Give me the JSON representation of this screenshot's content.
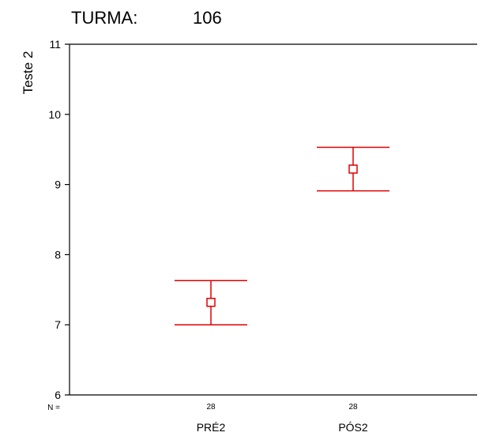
{
  "title": {
    "label": "TURMA:",
    "value": "106"
  },
  "chart_data": {
    "type": "errorbar",
    "categories": [
      "PRÉ2",
      "PÓS2"
    ],
    "series": [
      {
        "mean": [
          7.32,
          9.22
        ],
        "lower": [
          7.0,
          8.91
        ],
        "upper": [
          7.63,
          9.53
        ]
      }
    ],
    "n_label": "N =",
    "n_values": [
      "28",
      "28"
    ],
    "ylabel": "Teste 2",
    "xlabel": "",
    "ylim": [
      6,
      11
    ],
    "yticks": [
      6,
      7,
      8,
      9,
      10,
      11
    ],
    "ytick_labels": [
      "6",
      "7",
      "8",
      "9",
      "10",
      "11"
    ],
    "grid": false,
    "legend": "none",
    "marker": "open-square",
    "colors": {
      "error_bar": "#e00000",
      "axis": "#000000"
    }
  }
}
